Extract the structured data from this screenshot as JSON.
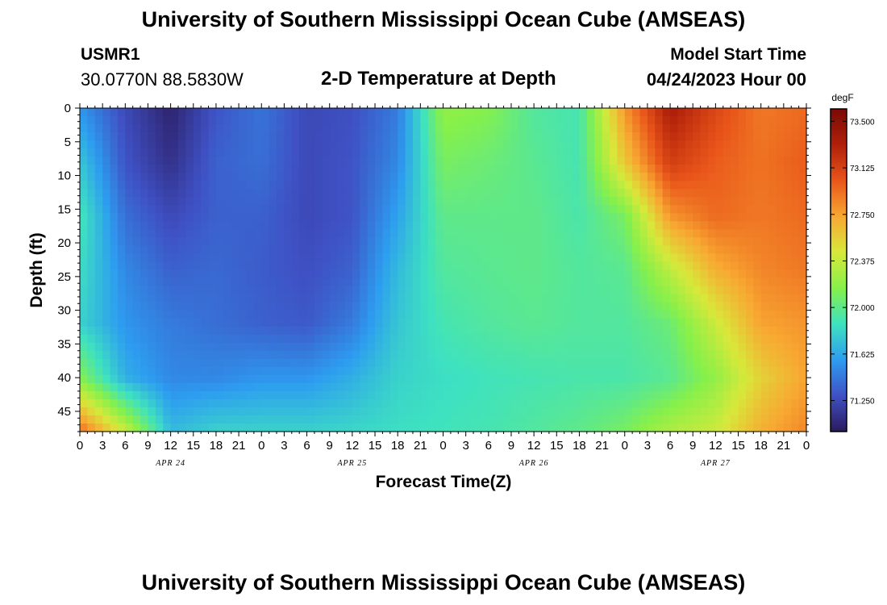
{
  "header": {
    "title": "University of Southern Mississippi Ocean Cube (AMSEAS)",
    "station": "USMR1",
    "coordinates": "30.0770N  88.5830W",
    "plot_title": "2-D Temperature at Depth",
    "start_label": "Model Start Time",
    "start_value": "04/24/2023 Hour 00"
  },
  "footer": {
    "title": "University of Southern Mississippi Ocean Cube (AMSEAS)"
  },
  "chart_data": {
    "type": "heatmap",
    "title": "2-D Temperature at Depth",
    "xlabel": "Forecast Time(Z)",
    "ylabel": "Depth (ft)",
    "x_tick_labels": [
      "0",
      "3",
      "6",
      "9",
      "12",
      "15",
      "18",
      "21",
      "0",
      "3",
      "6",
      "9",
      "12",
      "15",
      "18",
      "21",
      "0",
      "3",
      "6",
      "9",
      "12",
      "15",
      "18",
      "21",
      "0",
      "3",
      "6",
      "9",
      "12",
      "15",
      "18",
      "21",
      "0"
    ],
    "date_labels": [
      "APR 24",
      "APR 25",
      "APR 26",
      "APR 27"
    ],
    "y_ticks": [
      0,
      5,
      10,
      15,
      20,
      25,
      30,
      35,
      40,
      45
    ],
    "ylim": [
      0,
      48
    ],
    "y_inverted": true,
    "colorbar": {
      "unit": "degF",
      "range": [
        71.0,
        73.6
      ],
      "ticks": [
        "73.500",
        "73.125",
        "72.750",
        "72.375",
        "72.000",
        "71.625",
        "71.250"
      ],
      "colors": [
        "#2b1a5e",
        "#3f51c4",
        "#2d9df0",
        "#3ee2c0",
        "#86f04a",
        "#d8e83a",
        "#f8a832",
        "#e9551a",
        "#b0200a",
        "#7a0a06"
      ]
    },
    "depths_ft": [
      0,
      8,
      16,
      24,
      32,
      40,
      48
    ],
    "hours": [
      0,
      6,
      12,
      18,
      24,
      30,
      36,
      42,
      48,
      54,
      60,
      66,
      72,
      78,
      84,
      90,
      96
    ],
    "temperature_degF": [
      [
        71.55,
        71.25,
        71.05,
        71.3,
        71.42,
        71.25,
        71.28,
        71.45,
        72.2,
        72.15,
        71.95,
        71.9,
        72.8,
        73.35,
        73.1,
        72.9,
        72.95
      ],
      [
        71.75,
        71.3,
        71.12,
        71.35,
        71.4,
        71.25,
        71.3,
        71.5,
        72.1,
        72.05,
        71.98,
        71.9,
        72.6,
        73.15,
        73.0,
        72.92,
        73.0
      ],
      [
        71.9,
        71.4,
        71.25,
        71.35,
        71.35,
        71.25,
        71.3,
        71.6,
        72.0,
        72.0,
        72.0,
        71.92,
        72.1,
        72.8,
        72.95,
        72.9,
        72.95
      ],
      [
        71.85,
        71.5,
        71.35,
        71.38,
        71.33,
        71.28,
        71.35,
        71.7,
        71.95,
        71.98,
        72.0,
        71.95,
        71.98,
        72.35,
        72.7,
        72.85,
        72.9
      ],
      [
        71.8,
        71.55,
        71.45,
        71.4,
        71.35,
        71.32,
        71.45,
        71.75,
        71.9,
        71.95,
        71.98,
        71.95,
        71.95,
        72.05,
        72.4,
        72.75,
        72.8
      ],
      [
        72.15,
        71.65,
        71.5,
        71.5,
        71.55,
        71.55,
        71.65,
        71.8,
        71.85,
        71.88,
        71.9,
        71.92,
        71.92,
        71.98,
        72.2,
        72.55,
        72.75
      ],
      [
        72.95,
        72.4,
        71.7,
        71.8,
        71.8,
        71.8,
        71.82,
        71.85,
        71.88,
        71.9,
        71.95,
        72.0,
        72.1,
        72.3,
        72.4,
        72.7,
        72.85
      ]
    ]
  }
}
